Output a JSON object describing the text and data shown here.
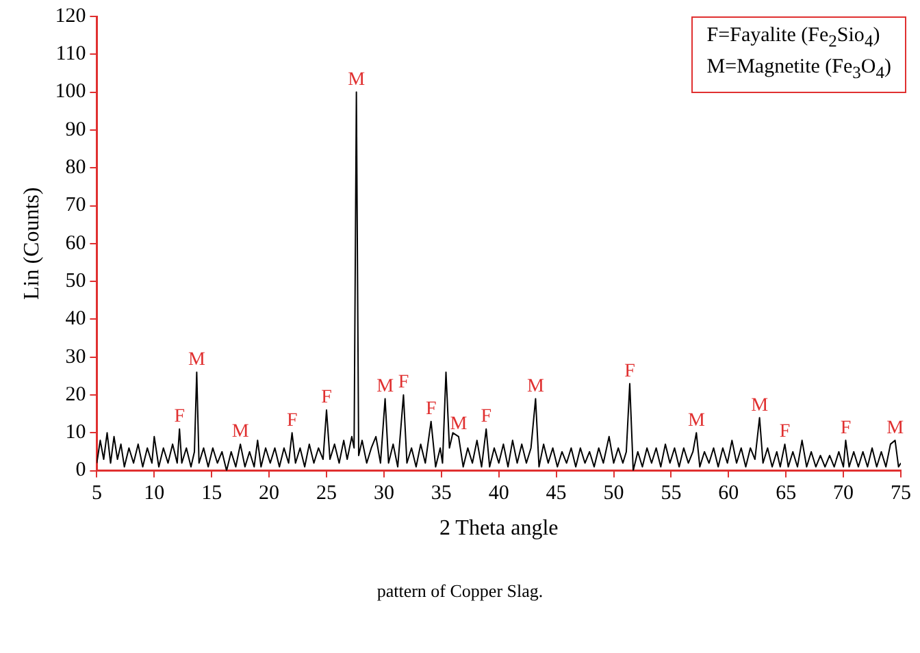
{
  "chart_data": {
    "type": "line",
    "xlabel": "2 Theta angle",
    "ylabel": "Lin (Counts)",
    "xlim": [
      5,
      75
    ],
    "xticks": [
      5,
      10,
      15,
      20,
      25,
      30,
      35,
      40,
      45,
      50,
      55,
      60,
      65,
      70,
      75
    ],
    "ylim": [
      0,
      120
    ],
    "yticks": [
      0,
      10,
      20,
      30,
      40,
      50,
      60,
      70,
      80,
      90,
      100,
      110,
      120
    ],
    "grid": false,
    "legend": false,
    "marker": "none",
    "line_style": "solid",
    "series": [
      {
        "color": "#000000",
        "x": [
          5,
          5.3,
          5.6,
          5.9,
          6.2,
          6.5,
          6.8,
          7.1,
          7.4,
          7.8,
          8.2,
          8.6,
          9,
          9.4,
          9.8,
          10,
          10.4,
          10.8,
          11.2,
          11.6,
          12,
          12.2,
          12.4,
          12.8,
          13.2,
          13.5,
          13.7,
          13.9,
          14.3,
          14.7,
          15.1,
          15.5,
          15.9,
          16.3,
          16.7,
          17.1,
          17.5,
          17.9,
          18.3,
          18.7,
          19,
          19.3,
          19.7,
          20.1,
          20.5,
          20.9,
          21.3,
          21.7,
          22,
          22.3,
          22.7,
          23.1,
          23.5,
          23.9,
          24.3,
          24.7,
          25,
          25.3,
          25.7,
          26.1,
          26.5,
          26.8,
          27.2,
          27.4,
          27.6,
          27.8,
          28.1,
          28.5,
          28.9,
          29.3,
          29.7,
          30.1,
          30.4,
          30.8,
          31.2,
          31.7,
          32,
          32.4,
          32.8,
          33.2,
          33.6,
          34.1,
          34.5,
          34.9,
          35.1,
          35.4,
          35.7,
          36,
          36.5,
          36.9,
          37.3,
          37.7,
          38.1,
          38.5,
          38.9,
          39.2,
          39.6,
          40,
          40.4,
          40.8,
          41.2,
          41.6,
          42,
          42.4,
          42.8,
          43.2,
          43.5,
          43.9,
          44.3,
          44.7,
          45.1,
          45.5,
          45.9,
          46.3,
          46.7,
          47.1,
          47.5,
          47.9,
          48.3,
          48.7,
          49.1,
          49.6,
          50,
          50.4,
          50.8,
          51.1,
          51.4,
          51.7,
          52.1,
          52.5,
          52.9,
          53.3,
          53.7,
          54.1,
          54.5,
          54.9,
          55.3,
          55.7,
          56.1,
          56.5,
          56.9,
          57.2,
          57.5,
          57.9,
          58.3,
          58.7,
          59.1,
          59.5,
          59.9,
          60.3,
          60.7,
          61.1,
          61.5,
          61.9,
          62.3,
          62.7,
          63,
          63.4,
          63.8,
          64.2,
          64.5,
          64.9,
          65.2,
          65.6,
          66,
          66.4,
          66.8,
          67.2,
          67.6,
          68,
          68.4,
          68.8,
          69.2,
          69.6,
          70,
          70.2,
          70.5,
          70.9,
          71.3,
          71.7,
          72.1,
          72.5,
          72.9,
          73.3,
          73.7,
          74.1,
          74.5,
          74.8,
          75
        ],
        "values": [
          2,
          8,
          3,
          10,
          2,
          9,
          3,
          7,
          1,
          6,
          2,
          7,
          1,
          6,
          2,
          9,
          1,
          6,
          2,
          7,
          2,
          11,
          2,
          6,
          1,
          5,
          26,
          2,
          6,
          1,
          6,
          2,
          5,
          0,
          5,
          1,
          7,
          1,
          5,
          1,
          8,
          1,
          6,
          2,
          6,
          1,
          6,
          2,
          10,
          2,
          6,
          1,
          7,
          2,
          6,
          3,
          16,
          3,
          7,
          2,
          8,
          3,
          9,
          6,
          100,
          4,
          8,
          2,
          6,
          9,
          2,
          19,
          2,
          7,
          1,
          20,
          2,
          6,
          1,
          7,
          2,
          13,
          1,
          6,
          2,
          26,
          6,
          10,
          9,
          1,
          6,
          2,
          8,
          1,
          11,
          1,
          6,
          2,
          7,
          1,
          8,
          2,
          7,
          2,
          6,
          19,
          1,
          7,
          2,
          6,
          1,
          5,
          2,
          6,
          1,
          6,
          2,
          5,
          1,
          6,
          2,
          9,
          2,
          6,
          2,
          5,
          23,
          0,
          5,
          1,
          6,
          2,
          6,
          1,
          7,
          2,
          6,
          1,
          6,
          2,
          5,
          10,
          1,
          5,
          2,
          6,
          1,
          6,
          2,
          8,
          2,
          6,
          1,
          6,
          3,
          14,
          2,
          6,
          1,
          5,
          1,
          7,
          1,
          5,
          1,
          8,
          1,
          5,
          1,
          4,
          1,
          4,
          1,
          5,
          1,
          8,
          1,
          5,
          1,
          5,
          1,
          6,
          1,
          5,
          1,
          7,
          8,
          1,
          2
        ]
      }
    ],
    "annotations": [
      "F=Fayalite (Fe$_{2}$Sio$_{4}$)",
      "M=Magnetite (Fe$_{3}$O$_{4}$)",
      "pattern of Copper Slag.",
      {
        "text": "F",
        "x": 12.2,
        "y": 11
      },
      {
        "text": "M",
        "x": 13.7,
        "y": 26
      },
      {
        "text": "M",
        "x": 17.5,
        "y": 7
      },
      {
        "text": "F",
        "x": 22,
        "y": 10
      },
      {
        "text": "F",
        "x": 25,
        "y": 16
      },
      {
        "text": "M",
        "x": 27.6,
        "y": 100
      },
      {
        "text": "M",
        "x": 30.1,
        "y": 19
      },
      {
        "text": "F",
        "x": 31.7,
        "y": 20
      },
      {
        "text": "F",
        "x": 34.1,
        "y": 13
      },
      {
        "text": "M",
        "x": 36.5,
        "y": 9
      },
      {
        "text": "F",
        "x": 38.9,
        "y": 11
      },
      {
        "text": "M",
        "x": 43.2,
        "y": 19
      },
      {
        "text": "F",
        "x": 51.4,
        "y": 23
      },
      {
        "text": "M",
        "x": 57.2,
        "y": 10
      },
      {
        "text": "M",
        "x": 62.7,
        "y": 14
      },
      {
        "text": "F",
        "x": 64.9,
        "y": 7
      },
      {
        "text": "F",
        "x": 70.2,
        "y": 8
      },
      {
        "text": "M",
        "x": 74.5,
        "y": 8
      }
    ]
  }
}
